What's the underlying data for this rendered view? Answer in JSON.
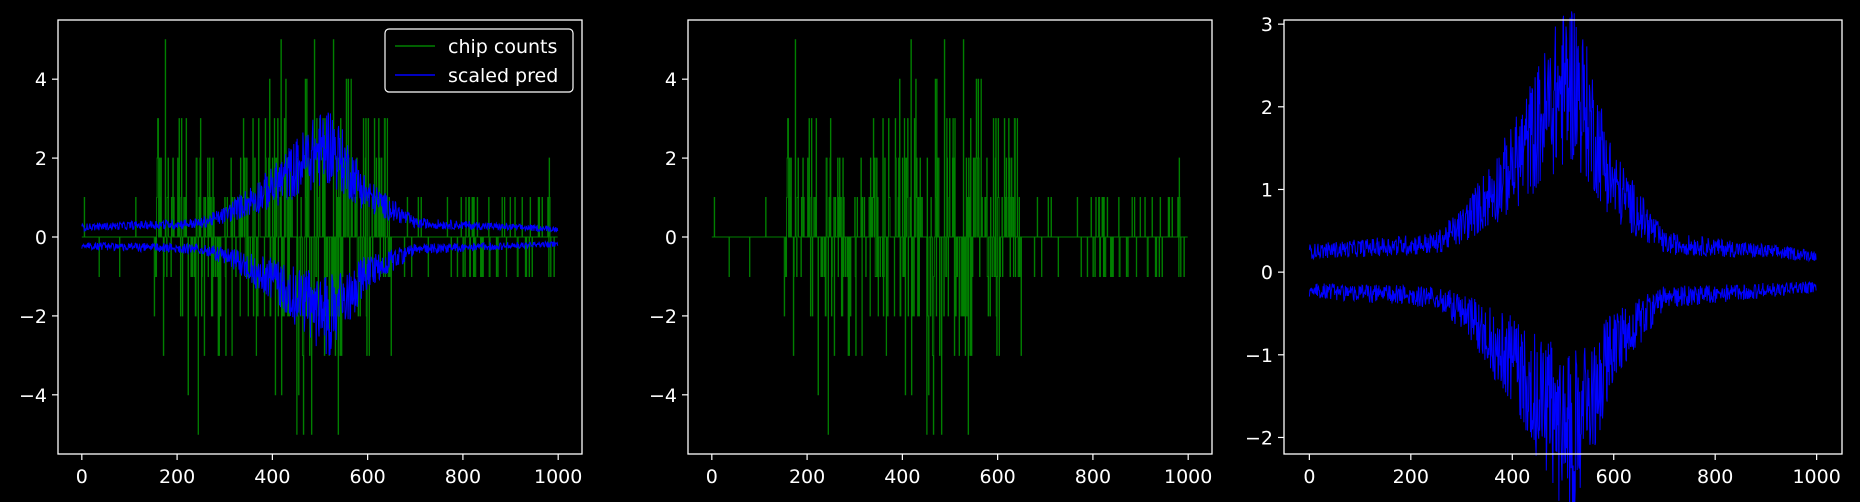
{
  "chart_data": [
    {
      "type": "line",
      "background": "#000000",
      "xlim": [
        -50,
        1050
      ],
      "ylim": [
        -5.5,
        5.5
      ],
      "xticks": [
        0,
        200,
        400,
        600,
        800,
        1000
      ],
      "yticks": [
        -4,
        -2,
        0,
        2,
        4
      ],
      "xticklabels": [
        "0",
        "200",
        "400",
        "600",
        "800",
        "1000"
      ],
      "yticklabels": [
        "−4",
        "−2",
        "0",
        "2",
        "4"
      ],
      "legend": {
        "position": "top-right",
        "entries": [
          {
            "label": "chip counts",
            "color": "#008000"
          },
          {
            "label": "scaled pred",
            "color": "#0000ff"
          }
        ]
      },
      "series": [
        {
          "name": "chip counts",
          "color": "#008000",
          "kind": "counts",
          "n": 1000,
          "max_abs": 5
        },
        {
          "name": "scaled pred",
          "color": "#0000ff",
          "kind": "envelope",
          "n": 1000,
          "envelope_knots": [
            [
              0,
              0.2
            ],
            [
              250,
              0.3
            ],
            [
              300,
              0.5
            ],
            [
              400,
              1.2
            ],
            [
              480,
              2.0
            ],
            [
              520,
              2.3
            ],
            [
              600,
              1.0
            ],
            [
              700,
              0.3
            ],
            [
              1000,
              0.15
            ]
          ]
        }
      ]
    },
    {
      "type": "line",
      "background": "#000000",
      "xlim": [
        -50,
        1050
      ],
      "ylim": [
        -5.5,
        5.5
      ],
      "xticks": [
        0,
        200,
        400,
        600,
        800,
        1000
      ],
      "yticks": [
        -4,
        -2,
        0,
        2,
        4
      ],
      "xticklabels": [
        "0",
        "200",
        "400",
        "600",
        "800",
        "1000"
      ],
      "yticklabels": [
        "−4",
        "−2",
        "0",
        "2",
        "4"
      ],
      "series": [
        {
          "name": "chip counts",
          "color": "#008000",
          "kind": "counts",
          "n": 1000,
          "max_abs": 5
        }
      ]
    },
    {
      "type": "line",
      "background": "#000000",
      "xlim": [
        -50,
        1050
      ],
      "ylim": [
        -2.2,
        3.05
      ],
      "xticks": [
        0,
        200,
        400,
        600,
        800,
        1000
      ],
      "yticks": [
        -2,
        -1,
        0,
        1,
        2,
        3
      ],
      "xticklabels": [
        "0",
        "200",
        "400",
        "600",
        "800",
        "1000"
      ],
      "yticklabels": [
        "−2",
        "−1",
        "0",
        "1",
        "2",
        "3"
      ],
      "series": [
        {
          "name": "scaled pred",
          "color": "#0000ff",
          "kind": "envelope",
          "n": 1000,
          "envelope_knots": [
            [
              0,
              0.2
            ],
            [
              250,
              0.3
            ],
            [
              300,
              0.5
            ],
            [
              400,
              1.2
            ],
            [
              480,
              2.0
            ],
            [
              520,
              2.3
            ],
            [
              600,
              1.0
            ],
            [
              700,
              0.3
            ],
            [
              1000,
              0.15
            ]
          ]
        }
      ]
    }
  ]
}
